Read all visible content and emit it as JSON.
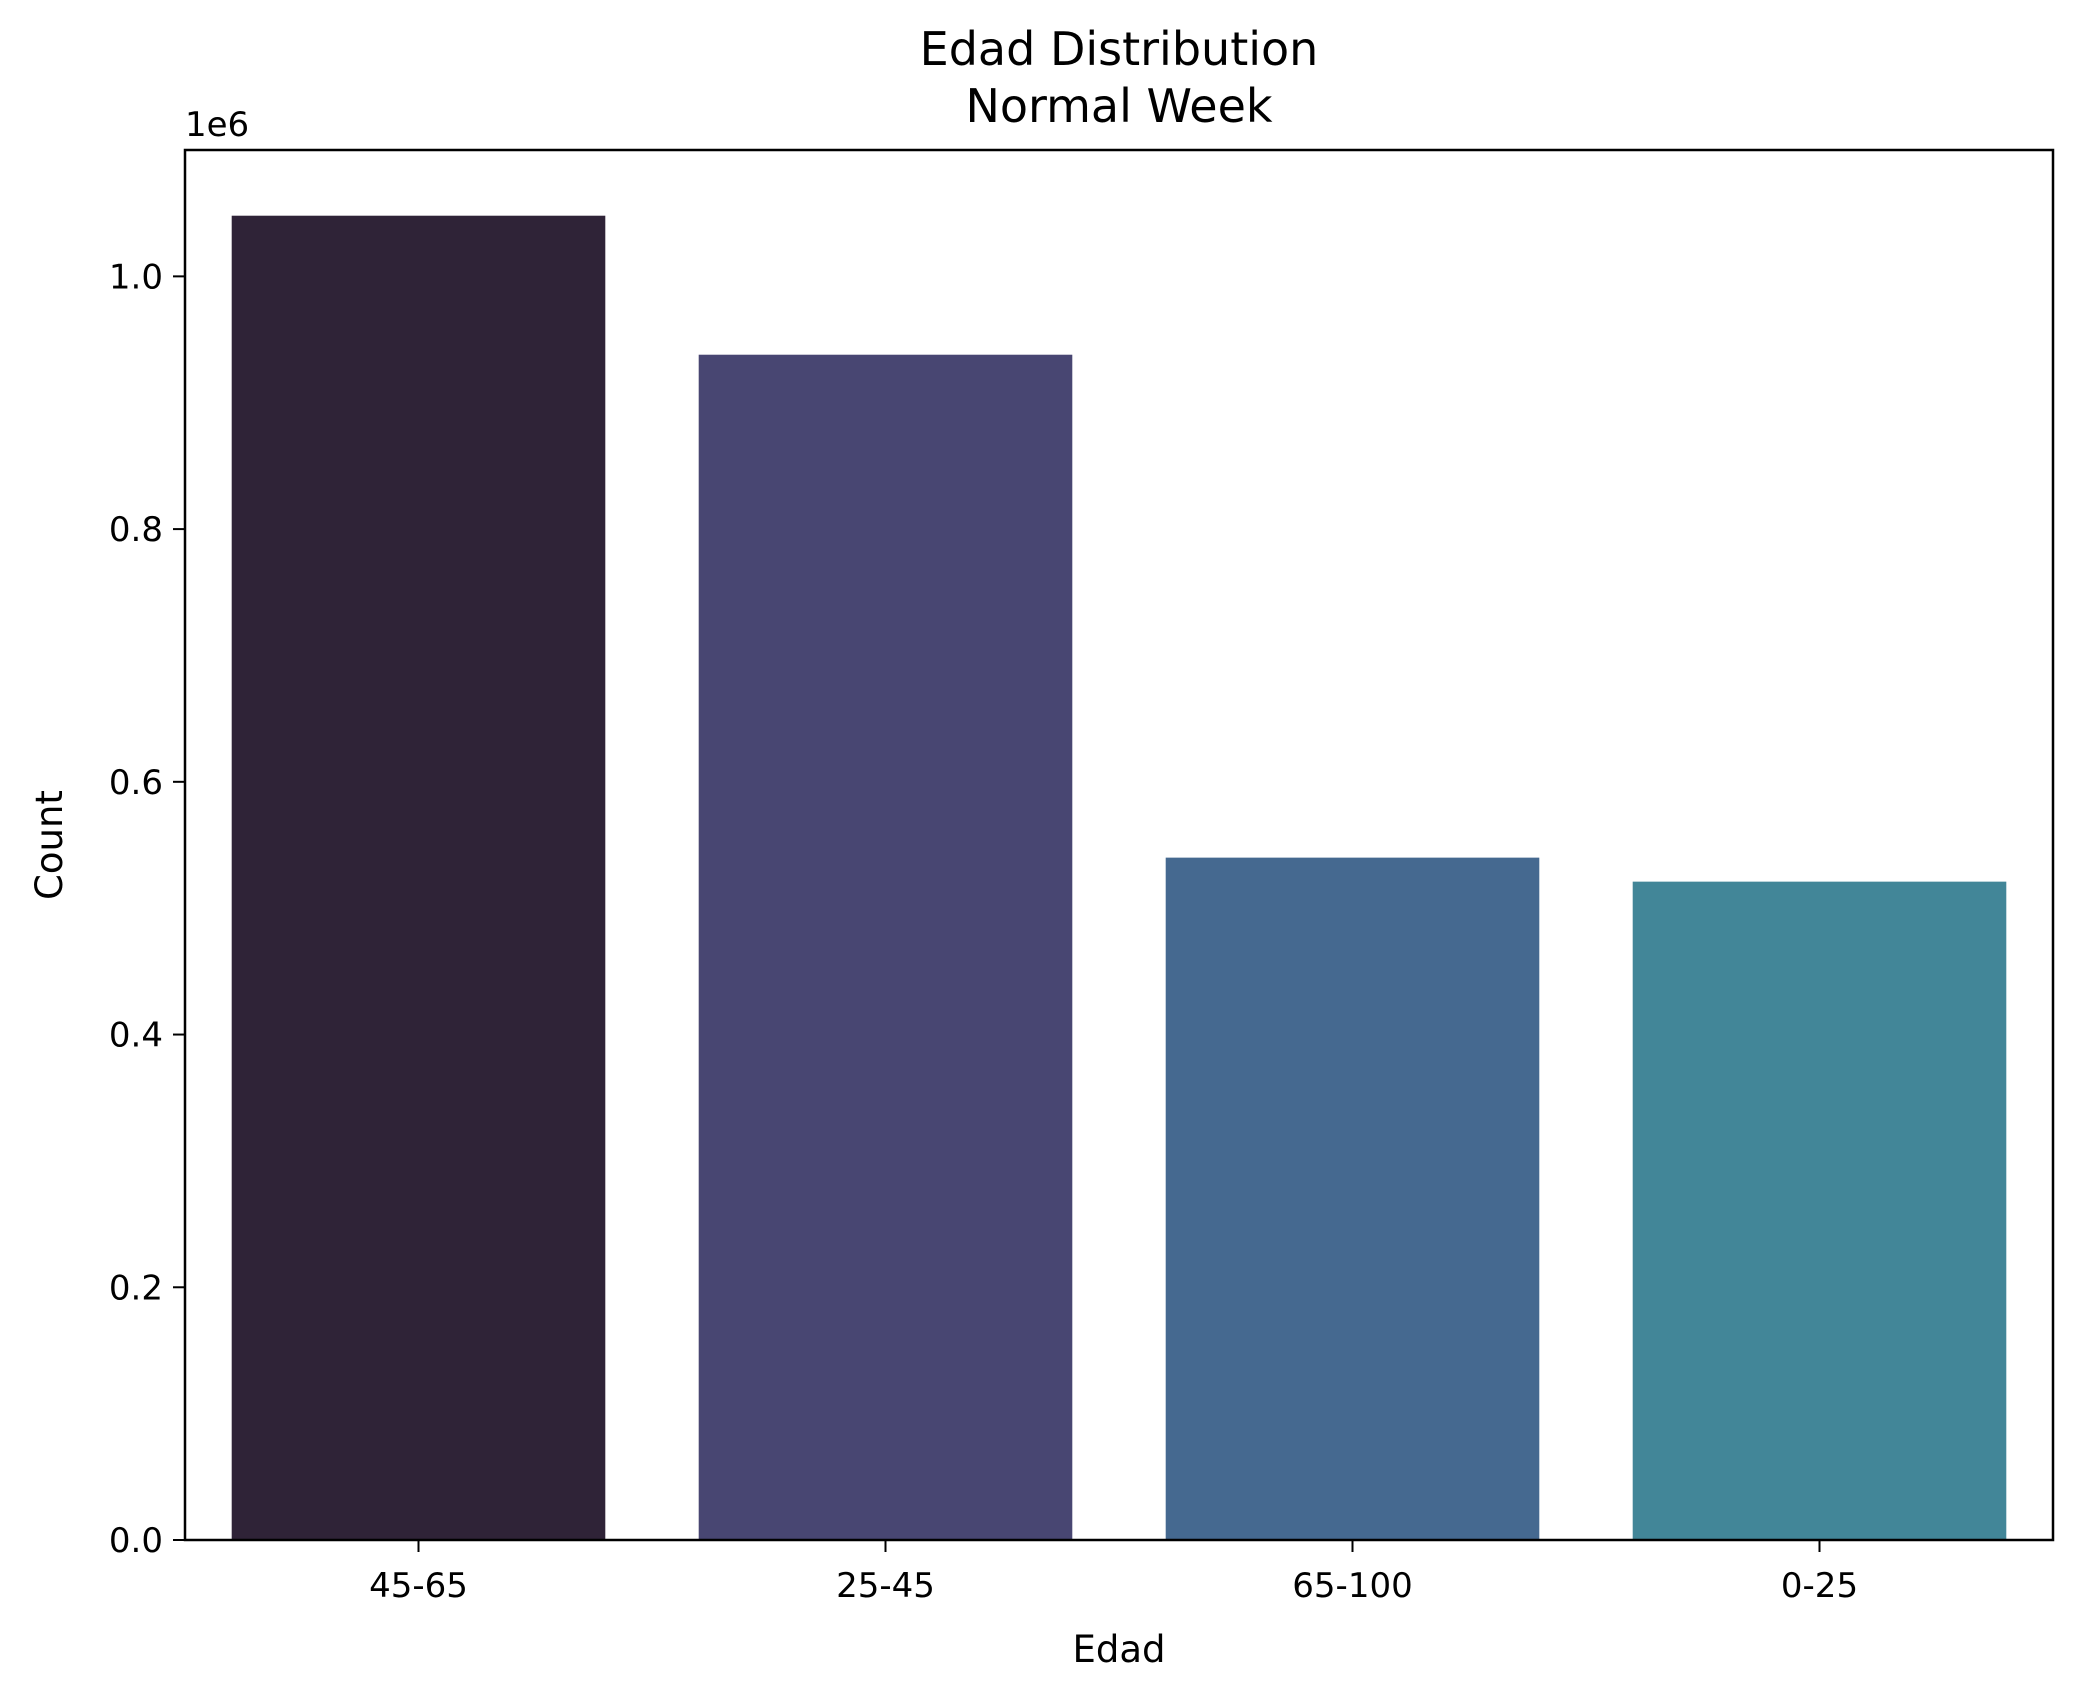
{
  "chart_data": {
    "type": "bar",
    "title": "Edad Distribution",
    "subtitle": "Normal Week",
    "xlabel": "Edad",
    "ylabel": "Count",
    "y_offset_text": "1e6",
    "categories": [
      "45-65",
      "25-45",
      "65-100",
      "0-25"
    ],
    "values": [
      1048000,
      938000,
      540000,
      521000
    ],
    "ylim": [
      0,
      1100000
    ],
    "yticks": [
      0,
      200000,
      400000,
      600000,
      800000,
      1000000
    ],
    "ytick_labels": [
      "0.0",
      "0.2",
      "0.4",
      "0.6",
      "0.8",
      "1.0"
    ],
    "colors": [
      "#2f2337",
      "#484672",
      "#456990",
      "#428698"
    ],
    "grid": false,
    "legend": "none"
  }
}
